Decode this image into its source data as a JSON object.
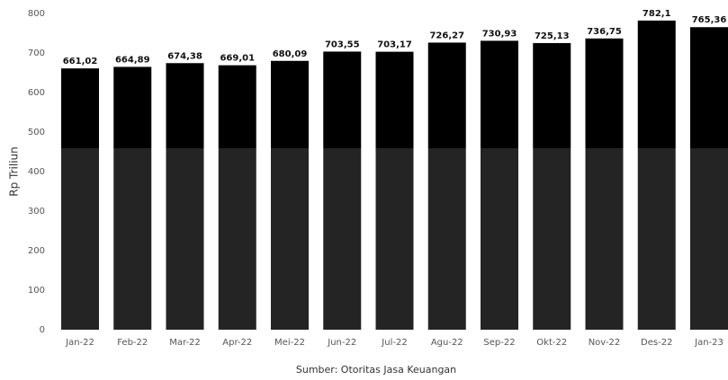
{
  "chart_data": {
    "type": "bar",
    "categories": [
      "Jan-22",
      "Feb-22",
      "Mar-22",
      "Apr-22",
      "Mei-22",
      "Jun-22",
      "Jul-22",
      "Agu-22",
      "Sep-22",
      "Okt-22",
      "Nov-22",
      "Des-22",
      "Jan-23"
    ],
    "values": [
      661.02,
      664.89,
      674.38,
      669.01,
      680.09,
      703.55,
      703.17,
      726.27,
      730.93,
      725.13,
      736.75,
      782.1,
      765.36
    ],
    "value_labels": [
      "661,02",
      "664,89",
      "674,38",
      "669,01",
      "680,09",
      "703,55",
      "703,17",
      "726,27",
      "730,93",
      "725,13",
      "736,75",
      "782,1",
      "765,36"
    ],
    "color": "#000000",
    "y_label": "Rp Triliun",
    "source": "Sumber: Otoritas Jasa Keuangan",
    "ylim": [
      0,
      800
    ],
    "yticks": [
      0,
      100,
      200,
      300,
      400,
      500,
      600,
      700,
      800
    ]
  }
}
